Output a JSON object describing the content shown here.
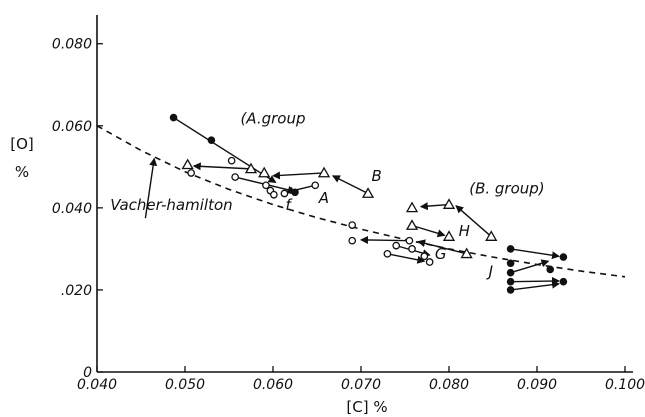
{
  "chart_data": {
    "type": "scatter",
    "title": "",
    "xlabel": "[C]  %",
    "ylabel_lines": [
      "[O]",
      "%"
    ],
    "xlim": [
      0.04,
      0.1
    ],
    "ylim": [
      0,
      0.087
    ],
    "x_ticks": [
      0.04,
      0.05,
      0.06,
      0.07,
      0.08,
      0.09,
      0.1
    ],
    "x_tick_labels": [
      "0.040",
      "0.050",
      "0.060",
      "0.070",
      "0.080",
      "0.090",
      "0.100"
    ],
    "y_ticks": [
      0,
      0.02,
      0.04,
      0.06,
      0.08
    ],
    "y_tick_labels": [
      "0",
      ".020",
      "0.040",
      "0.060",
      "0.080"
    ],
    "grid": false,
    "annotations": [
      {
        "text": "(A.group",
        "x": 0.0563,
        "y": 0.0605
      },
      {
        "text": "(B. group)",
        "x": 0.0823,
        "y": 0.0435
      },
      {
        "text": "B",
        "x": 0.0712,
        "y": 0.0465
      },
      {
        "text": "A",
        "x": 0.0652,
        "y": 0.0412
      },
      {
        "text": "f",
        "x": 0.0614,
        "y": 0.0395
      },
      {
        "text": "H",
        "x": 0.0811,
        "y": 0.0331
      },
      {
        "text": "G",
        "x": 0.0784,
        "y": 0.0275
      },
      {
        "text": "J",
        "x": 0.0845,
        "y": 0.0233
      },
      {
        "text": "Vacher-hamilton",
        "x": 0.0415,
        "y": 0.0395
      }
    ],
    "curve": {
      "name": "Vacher-hamilton",
      "style": "dashed",
      "x": [
        0.04,
        0.045,
        0.05,
        0.055,
        0.06,
        0.065,
        0.07,
        0.075,
        0.08,
        0.085,
        0.09,
        0.095,
        0.1
      ],
      "y": [
        0.06,
        0.054,
        0.0488,
        0.0445,
        0.0408,
        0.0376,
        0.0348,
        0.0323,
        0.03,
        0.028,
        0.0262,
        0.0246,
        0.0232
      ]
    },
    "series": [
      {
        "marker": "triangle-open",
        "points": [
          [
            0.0503,
            0.0505
          ],
          [
            0.059,
            0.0485
          ],
          [
            0.0658,
            0.0485
          ],
          [
            0.0708,
            0.0435
          ],
          [
            0.0758,
            0.04
          ],
          [
            0.08,
            0.0408
          ],
          [
            0.0758,
            0.0357
          ],
          [
            0.08,
            0.033
          ],
          [
            0.082,
            0.0288
          ],
          [
            0.0848,
            0.033
          ],
          [
            0.0575,
            0.0495
          ]
        ]
      },
      {
        "marker": "circle-open",
        "points": [
          [
            0.0507,
            0.0485
          ],
          [
            0.0553,
            0.0515
          ],
          [
            0.0557,
            0.0475
          ],
          [
            0.0592,
            0.0455
          ],
          [
            0.0597,
            0.0442
          ],
          [
            0.0601,
            0.0432
          ],
          [
            0.0613,
            0.0435
          ],
          [
            0.0648,
            0.0455
          ],
          [
            0.069,
            0.0358
          ],
          [
            0.069,
            0.032
          ],
          [
            0.073,
            0.0288
          ],
          [
            0.074,
            0.0308
          ],
          [
            0.0758,
            0.03
          ],
          [
            0.0772,
            0.0282
          ],
          [
            0.0778,
            0.0268
          ],
          [
            0.0755,
            0.032
          ]
        ]
      },
      {
        "marker": "circle-filled",
        "points": [
          [
            0.0487,
            0.062
          ],
          [
            0.053,
            0.0565
          ],
          [
            0.0625,
            0.0438
          ],
          [
            0.087,
            0.03
          ],
          [
            0.087,
            0.0265
          ],
          [
            0.087,
            0.0242
          ],
          [
            0.087,
            0.022
          ],
          [
            0.087,
            0.02
          ],
          [
            0.0915,
            0.025
          ],
          [
            0.093,
            0.028
          ],
          [
            0.093,
            0.022
          ]
        ]
      }
    ],
    "arrows": [
      [
        0.0487,
        0.062,
        0.0603,
        0.0462
      ],
      [
        0.0708,
        0.0435,
        0.0668,
        0.0478
      ],
      [
        0.0658,
        0.0485,
        0.06,
        0.0478
      ],
      [
        0.0575,
        0.0495,
        0.051,
        0.0502
      ],
      [
        0.0557,
        0.0475,
        0.0625,
        0.044
      ],
      [
        0.0648,
        0.0455,
        0.0615,
        0.0438
      ],
      [
        0.08,
        0.0408,
        0.0768,
        0.0403
      ],
      [
        0.0848,
        0.033,
        0.0808,
        0.0405
      ],
      [
        0.0758,
        0.0357,
        0.0795,
        0.0333
      ],
      [
        0.082,
        0.0288,
        0.0765,
        0.0318
      ],
      [
        0.073,
        0.0288,
        0.0772,
        0.027
      ],
      [
        0.0755,
        0.032,
        0.07,
        0.0322
      ],
      [
        0.074,
        0.0308,
        0.0778,
        0.0285
      ],
      [
        0.087,
        0.03,
        0.0925,
        0.0282
      ],
      [
        0.087,
        0.0242,
        0.0913,
        0.027
      ],
      [
        0.087,
        0.022,
        0.0925,
        0.0222
      ],
      [
        0.087,
        0.02,
        0.0925,
        0.0215
      ]
    ],
    "annotation_arrows": [
      [
        0.0455,
        0.0375,
        0.0465,
        0.052
      ]
    ]
  }
}
